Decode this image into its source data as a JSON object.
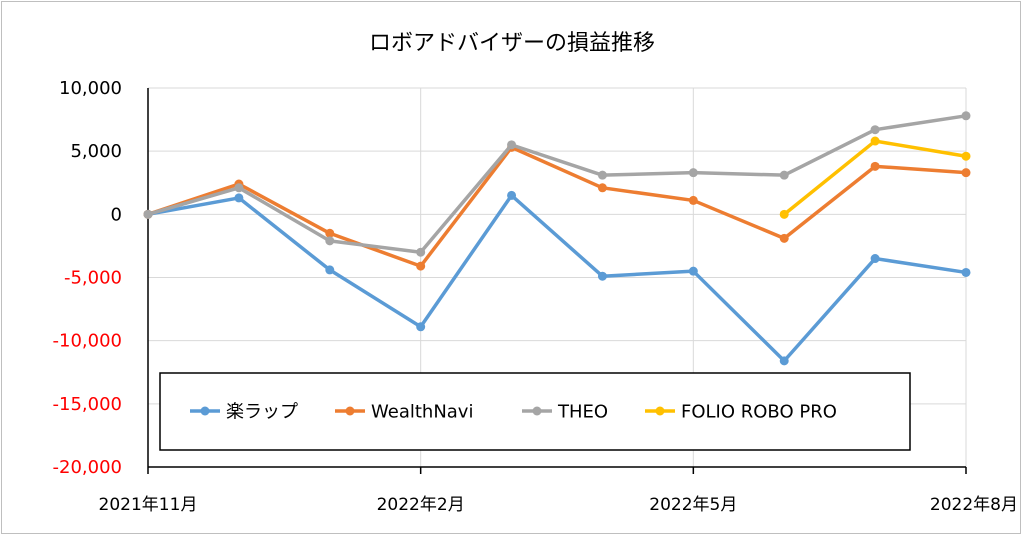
{
  "chart_data": {
    "type": "line",
    "title": "ロボアドバイザーの損益推移",
    "xlabel": "",
    "ylabel": "",
    "ylim": [
      -20000,
      10000
    ],
    "ytick_step": 5000,
    "ytick_labels": [
      "-20,000",
      "-15,000",
      "-10,000",
      "-5,000",
      "0",
      "5,000",
      "10,000"
    ],
    "negative_tick_color": "#ff0000",
    "positive_tick_color": "#000000",
    "x_count": 10,
    "x_tick_labels": [
      {
        "index": 0,
        "label": "2021年11月"
      },
      {
        "index": 3,
        "label": "2022年2月"
      },
      {
        "index": 6,
        "label": "2022年5月"
      },
      {
        "index": 9,
        "label": "2022年8月"
      }
    ],
    "vertical_grid_indices": [
      3,
      6,
      9
    ],
    "grid": true,
    "legend_position": "bottom-inside",
    "series": [
      {
        "name": "楽ラップ",
        "color": "#5b9bd5",
        "values": [
          0,
          1300,
          -4400,
          -8900,
          1500,
          -4900,
          -4500,
          -11600,
          -3500,
          -4600
        ]
      },
      {
        "name": "WealthNavi",
        "color": "#ed7d31",
        "values": [
          0,
          2400,
          -1500,
          -4100,
          5300,
          2100,
          1100,
          -1900,
          3800,
          3300
        ]
      },
      {
        "name": "THEO",
        "color": "#a5a5a5",
        "values": [
          0,
          2100,
          -2100,
          -3000,
          5500,
          3100,
          3300,
          3100,
          6700,
          7800
        ]
      },
      {
        "name": "FOLIO ROBO PRO",
        "color": "#ffc000",
        "values": [
          null,
          null,
          null,
          null,
          null,
          null,
          null,
          0,
          5800,
          4600
        ]
      }
    ]
  }
}
